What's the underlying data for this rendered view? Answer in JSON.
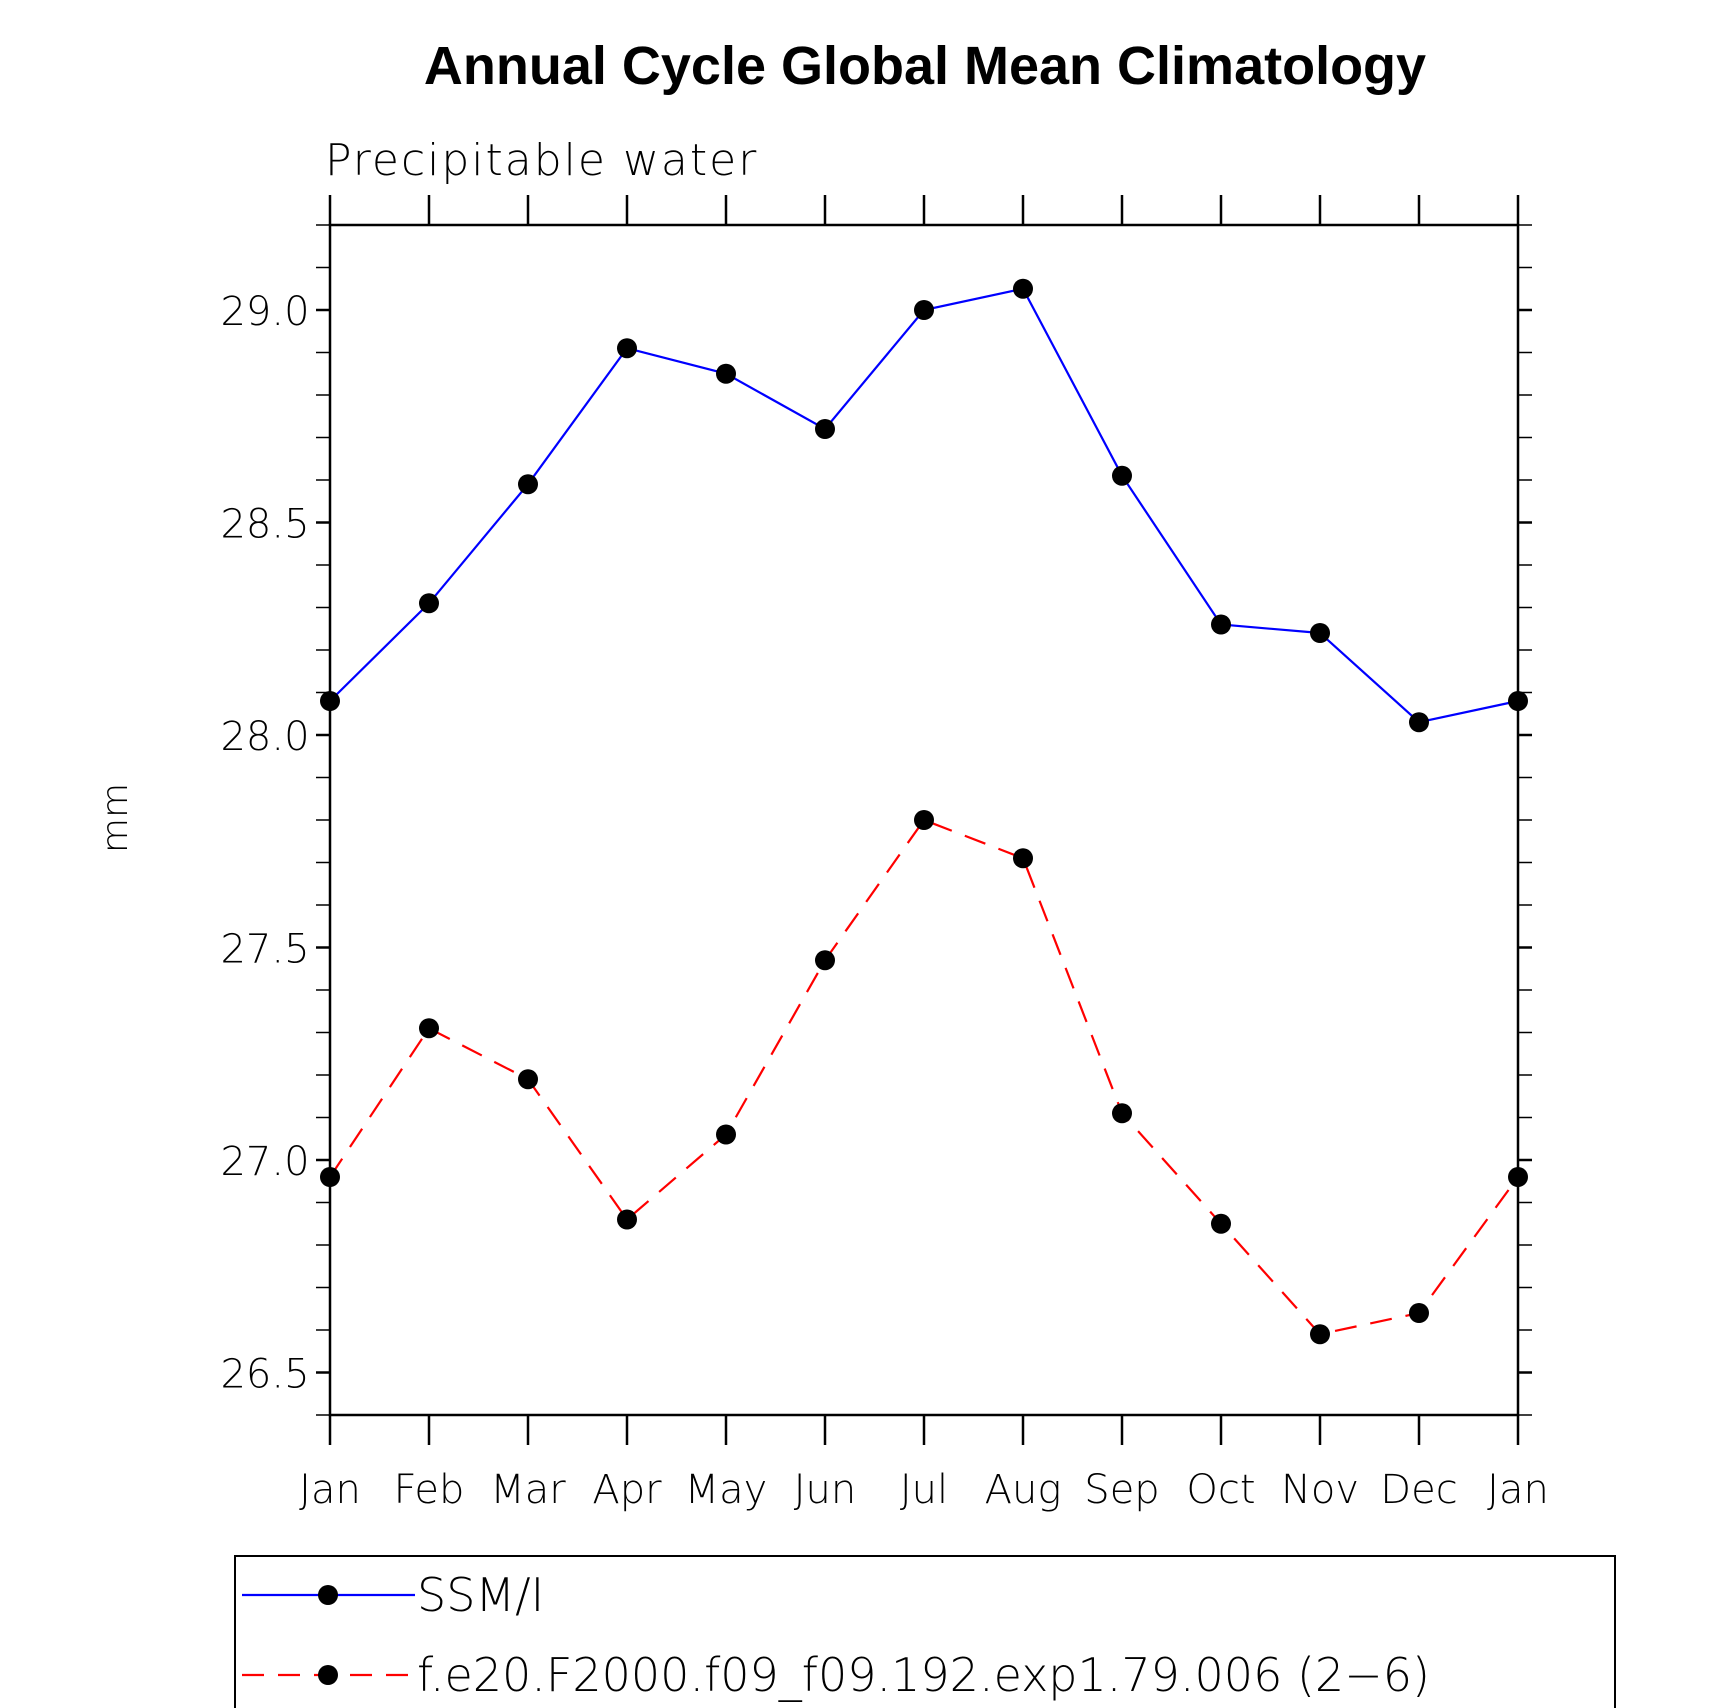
{
  "chart_data": {
    "type": "line",
    "title": "Annual Cycle Global Mean Climatology",
    "subtitle": "Precipitable water",
    "xlabel": "",
    "ylabel": "mm",
    "categories": [
      "Jan",
      "Feb",
      "Mar",
      "Apr",
      "May",
      "Jun",
      "Jul",
      "Aug",
      "Sep",
      "Oct",
      "Nov",
      "Dec",
      "Jan"
    ],
    "ylim": [
      26.4,
      29.2
    ],
    "yticks": [
      "26.5",
      "27.0",
      "27.5",
      "28.0",
      "28.5",
      "29.0"
    ],
    "ytick_values": [
      26.5,
      27.0,
      27.5,
      28.0,
      28.5,
      29.0
    ],
    "grid": false,
    "legend_position": "bottom",
    "series": [
      {
        "name": "SSM/I",
        "color": "#0000ff",
        "line_style": "solid",
        "marker": "circle",
        "values": [
          28.08,
          28.31,
          28.59,
          28.91,
          28.85,
          28.72,
          29.0,
          29.05,
          28.61,
          28.26,
          28.24,
          28.03,
          28.08
        ]
      },
      {
        "name": "f.e20.F2000.f09_f09.192.exp1.79.006 (2−6)",
        "color": "#ff0000",
        "line_style": "dashed",
        "marker": "circle",
        "values": [
          26.96,
          27.31,
          27.19,
          26.86,
          27.06,
          27.47,
          27.8,
          27.71,
          27.11,
          26.85,
          26.59,
          26.64,
          26.96
        ]
      }
    ]
  }
}
